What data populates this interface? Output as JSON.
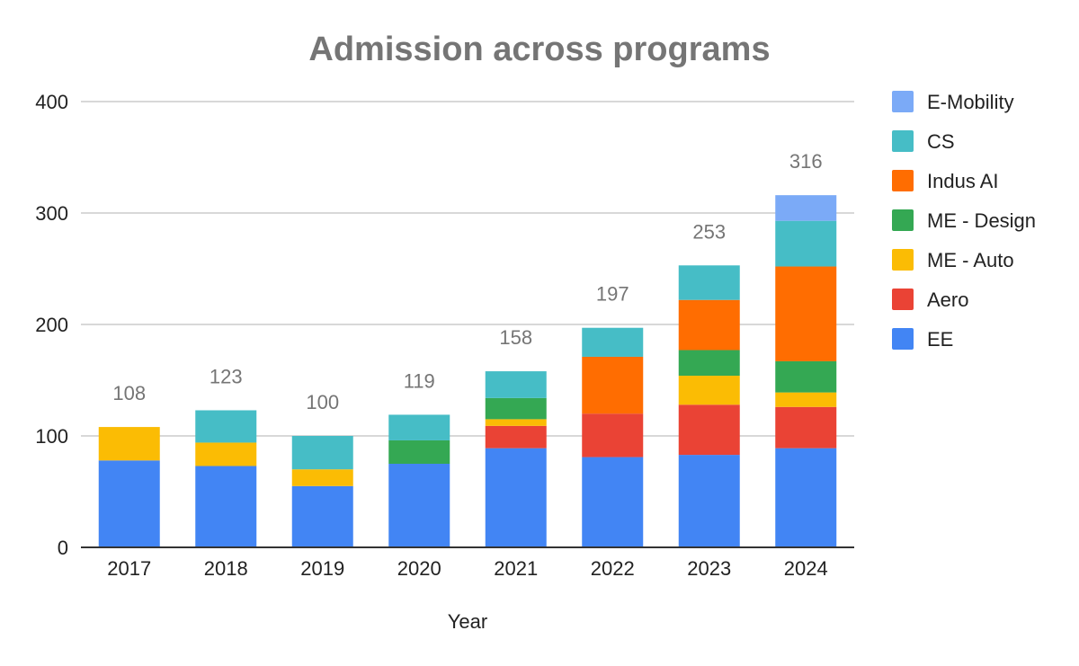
{
  "chart_data": {
    "type": "bar",
    "stacked": true,
    "title": "Admission across programs",
    "xlabel": "Year",
    "ylabel": "",
    "ylim": [
      0,
      400
    ],
    "yticks": [
      0,
      100,
      200,
      300,
      400
    ],
    "grid": true,
    "legend_position": "right",
    "categories": [
      "2017",
      "2018",
      "2019",
      "2020",
      "2021",
      "2022",
      "2023",
      "2024"
    ],
    "totals": [
      108,
      123,
      100,
      119,
      158,
      197,
      253,
      316
    ],
    "series": [
      {
        "name": "EE",
        "color": "#4285F4",
        "values": [
          78,
          73,
          55,
          75,
          89,
          81,
          83,
          89
        ]
      },
      {
        "name": "Aero",
        "color": "#EA4335",
        "values": [
          0,
          0,
          0,
          0,
          20,
          39,
          45,
          37
        ]
      },
      {
        "name": "ME - Auto",
        "color": "#FBBC04",
        "values": [
          30,
          21,
          15,
          0,
          6,
          0,
          26,
          13
        ]
      },
      {
        "name": "ME - Design",
        "color": "#34A853",
        "values": [
          0,
          0,
          0,
          21,
          19,
          0,
          23,
          28
        ]
      },
      {
        "name": "Indus AI",
        "color": "#FF6D01",
        "values": [
          0,
          0,
          0,
          0,
          0,
          51,
          45,
          85
        ]
      },
      {
        "name": "CS",
        "color": "#46BDC6",
        "values": [
          0,
          29,
          30,
          23,
          24,
          26,
          31,
          41
        ]
      },
      {
        "name": "E-Mobility",
        "color": "#7BAAF7",
        "values": [
          0,
          0,
          0,
          0,
          0,
          0,
          0,
          23
        ]
      }
    ]
  }
}
